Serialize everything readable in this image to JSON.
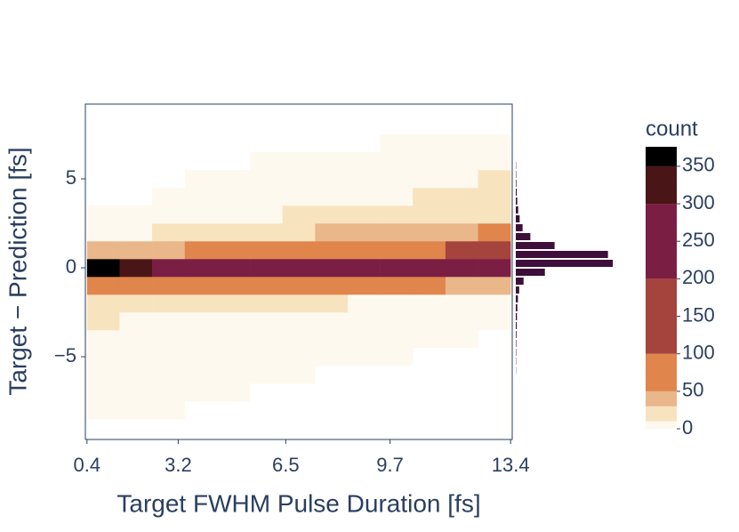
{
  "chart_data": {
    "type": "histogram2d",
    "x_title": "Target FWHM Pulse Duration [fs]",
    "y_title": "Target − Prediction [fs]",
    "colorbar_title": "count",
    "xbins": [
      0.4,
      1.4,
      2.4,
      3.4,
      4.4,
      5.4,
      6.4,
      7.4,
      8.4,
      9.4,
      10.4,
      11.4,
      12.4,
      13.4
    ],
    "ybins": [
      -9.5,
      -8.5,
      -7.5,
      -6.5,
      -5.5,
      -4.5,
      -3.5,
      -2.5,
      -1.5,
      -0.5,
      0.5,
      1.5,
      2.5,
      3.5,
      4.5,
      5.5,
      6.5,
      7.5
    ],
    "z": [
      [
        0,
        0,
        0,
        0,
        0,
        0,
        0,
        0,
        0,
        0,
        0,
        0,
        0
      ],
      [
        2,
        1,
        1,
        0,
        0,
        0,
        0,
        0,
        0,
        0,
        0,
        0,
        0
      ],
      [
        3,
        2,
        2,
        1,
        1,
        0,
        0,
        0,
        0,
        0,
        0,
        0,
        0
      ],
      [
        4,
        3,
        3,
        2,
        2,
        1,
        1,
        0,
        0,
        0,
        0,
        0,
        0
      ],
      [
        6,
        5,
        4,
        3,
        3,
        2,
        2,
        1,
        1,
        1,
        0,
        0,
        0
      ],
      [
        8,
        7,
        6,
        5,
        4,
        3,
        3,
        2,
        2,
        1,
        1,
        1,
        0
      ],
      [
        10,
        9,
        8,
        7,
        6,
        5,
        4,
        4,
        3,
        3,
        2,
        2,
        1
      ],
      [
        20,
        18,
        16,
        15,
        14,
        12,
        10,
        10,
        8,
        8,
        6,
        6,
        4
      ],
      [
        90,
        85,
        80,
        75,
        70,
        65,
        60,
        55,
        55,
        50,
        50,
        45,
        40
      ],
      [
        360,
        300,
        280,
        260,
        250,
        240,
        230,
        230,
        220,
        220,
        210,
        210,
        230
      ],
      [
        30,
        35,
        40,
        50,
        60,
        70,
        75,
        80,
        85,
        90,
        95,
        100,
        110
      ],
      [
        4,
        6,
        10,
        14,
        18,
        22,
        26,
        30,
        32,
        36,
        40,
        44,
        50
      ],
      [
        1,
        2,
        3,
        4,
        6,
        8,
        10,
        12,
        14,
        16,
        18,
        20,
        24
      ],
      [
        0,
        0,
        1,
        2,
        3,
        4,
        5,
        6,
        7,
        8,
        10,
        12,
        14
      ],
      [
        0,
        0,
        0,
        1,
        1,
        2,
        3,
        4,
        5,
        6,
        7,
        8,
        10
      ],
      [
        0,
        0,
        0,
        0,
        0,
        1,
        1,
        2,
        3,
        4,
        5,
        6,
        8
      ],
      [
        0,
        0,
        0,
        0,
        0,
        0,
        0,
        0,
        0,
        2,
        3,
        4,
        5
      ]
    ],
    "xlim": [
      0.35,
      13.45
    ],
    "ylim": [
      -9.65,
      9.2
    ],
    "xticks": [
      0.4,
      3.2,
      6.5,
      9.7,
      13.4
    ],
    "yticks": [
      {
        "value": -5,
        "label": "−5"
      },
      0,
      5
    ],
    "colorscale": [
      [
        0,
        "#fef9ef"
      ],
      [
        10,
        "#f8e3bf"
      ],
      [
        30,
        "#e9b78a"
      ],
      [
        50,
        "#e0854c"
      ],
      [
        100,
        "#a5433d"
      ],
      [
        200,
        "#7b1e44"
      ],
      [
        300,
        "#4a1516"
      ],
      [
        350,
        "#000000"
      ]
    ],
    "zlim": [
      0,
      376
    ],
    "zticks": [
      0,
      50,
      100,
      150,
      200,
      250,
      300,
      350
    ],
    "marginal": {
      "color": "#3d0f3a",
      "bins": [
        -6,
        -5.5,
        -5,
        -4.5,
        -4,
        -3.5,
        -3,
        -2.5,
        -2,
        -1.5,
        -1,
        -0.5,
        0,
        0.5,
        1,
        1.5,
        2,
        2.5,
        3,
        3.5,
        4,
        4.5,
        5,
        5.5,
        6
      ],
      "values": [
        2,
        3,
        4,
        5,
        7,
        9,
        12,
        16,
        22,
        35,
        80,
        300,
        1000,
        950,
        400,
        150,
        70,
        40,
        25,
        15,
        10,
        6,
        4,
        3
      ],
      "xlim": [
        0,
        1100
      ]
    }
  }
}
